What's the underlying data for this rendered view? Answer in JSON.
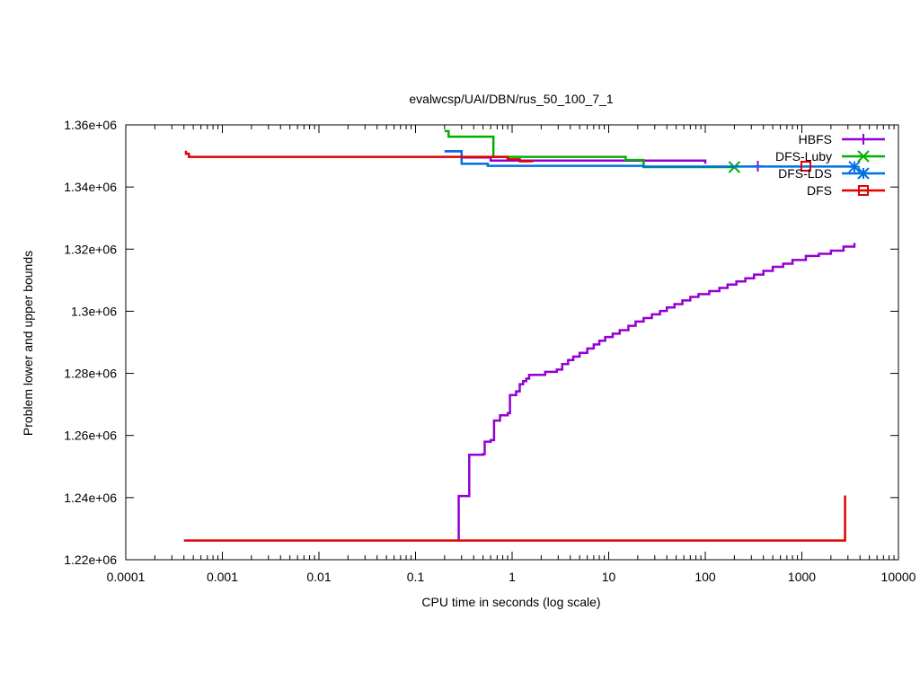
{
  "chart_data": {
    "type": "line",
    "title": "evalwcsp/UAI/DBN/rus_50_100_7_1",
    "xlabel": "CPU time in seconds (log scale)",
    "ylabel": "Problem lower and upper bounds",
    "xscale": "log",
    "xlim": [
      0.0001,
      10000
    ],
    "ylim": [
      1220000,
      1360000
    ],
    "x_ticks": [
      {
        "value": 0.0001,
        "label": "0.0001"
      },
      {
        "value": 0.001,
        "label": "0.001"
      },
      {
        "value": 0.01,
        "label": "0.01"
      },
      {
        "value": 0.1,
        "label": "0.1"
      },
      {
        "value": 1,
        "label": "1"
      },
      {
        "value": 10,
        "label": "10"
      },
      {
        "value": 100,
        "label": "100"
      },
      {
        "value": 1000,
        "label": "1000"
      },
      {
        "value": 10000,
        "label": "10000"
      }
    ],
    "y_ticks": [
      {
        "value": 1220000,
        "label": "1.22e+06"
      },
      {
        "value": 1240000,
        "label": "1.24e+06"
      },
      {
        "value": 1260000,
        "label": "1.26e+06"
      },
      {
        "value": 1280000,
        "label": "1.28e+06"
      },
      {
        "value": 1300000,
        "label": "1.3e+06"
      },
      {
        "value": 1320000,
        "label": "1.32e+06"
      },
      {
        "value": 1340000,
        "label": "1.34e+06"
      },
      {
        "value": 1360000,
        "label": "1.36e+06"
      }
    ],
    "grid": false,
    "legend_position": "top-right",
    "series": [
      {
        "name": "HBFS",
        "color": "#9400d3",
        "marker": "plus",
        "marker_at": [
          350,
          1346700
        ],
        "lines": [
          [
            [
              0.2,
              1351500
            ],
            [
              0.3,
              1351500
            ],
            [
              0.3,
              1349500
            ],
            [
              0.6,
              1349500
            ],
            [
              0.6,
              1348500
            ],
            [
              100,
              1348500
            ],
            [
              100,
              1347500
            ]
          ],
          [
            [
              0.28,
              1226500
            ],
            [
              0.28,
              1240500
            ],
            [
              0.36,
              1240500
            ],
            [
              0.36,
              1253800
            ],
            [
              0.5,
              1253800
            ],
            [
              0.5,
              1254000
            ],
            [
              0.52,
              1254000
            ],
            [
              0.52,
              1258000
            ],
            [
              0.6,
              1258000
            ],
            [
              0.6,
              1258500
            ],
            [
              0.65,
              1258500
            ],
            [
              0.65,
              1264800
            ],
            [
              0.75,
              1264800
            ],
            [
              0.75,
              1266500
            ],
            [
              0.9,
              1266500
            ],
            [
              0.9,
              1267200
            ],
            [
              0.95,
              1267200
            ],
            [
              0.95,
              1273000
            ],
            [
              1.1,
              1273000
            ],
            [
              1.1,
              1274200
            ],
            [
              1.2,
              1274200
            ],
            [
              1.2,
              1276500
            ],
            [
              1.3,
              1276500
            ],
            [
              1.3,
              1277500
            ],
            [
              1.4,
              1277500
            ],
            [
              1.4,
              1278300
            ],
            [
              1.5,
              1278300
            ],
            [
              1.5,
              1279500
            ],
            [
              2.2,
              1279500
            ],
            [
              2.2,
              1280500
            ],
            [
              2.9,
              1280500
            ],
            [
              2.9,
              1281200
            ],
            [
              3.3,
              1281200
            ],
            [
              3.3,
              1283000
            ],
            [
              3.8,
              1283000
            ],
            [
              3.8,
              1284300
            ],
            [
              4.3,
              1284300
            ],
            [
              4.3,
              1285400
            ],
            [
              5.0,
              1285400
            ],
            [
              5.0,
              1286600
            ],
            [
              6.0,
              1286600
            ],
            [
              6.0,
              1288000
            ],
            [
              7.0,
              1288000
            ],
            [
              7.0,
              1289300
            ],
            [
              8.0,
              1289300
            ],
            [
              8.0,
              1290500
            ],
            [
              9.2,
              1290500
            ],
            [
              9.2,
              1291700
            ],
            [
              11,
              1291700
            ],
            [
              11,
              1292800
            ],
            [
              13,
              1292800
            ],
            [
              13,
              1293900
            ],
            [
              16,
              1293900
            ],
            [
              16,
              1295300
            ],
            [
              19,
              1295300
            ],
            [
              19,
              1296700
            ],
            [
              23,
              1296700
            ],
            [
              23,
              1297800
            ],
            [
              28,
              1297800
            ],
            [
              28,
              1299000
            ],
            [
              34,
              1299000
            ],
            [
              34,
              1300100
            ],
            [
              40,
              1300100
            ],
            [
              40,
              1301200
            ],
            [
              48,
              1301200
            ],
            [
              48,
              1302300
            ],
            [
              58,
              1302300
            ],
            [
              58,
              1303500
            ],
            [
              70,
              1303500
            ],
            [
              70,
              1304600
            ],
            [
              85,
              1304600
            ],
            [
              85,
              1305500
            ],
            [
              110,
              1305500
            ],
            [
              110,
              1306500
            ],
            [
              140,
              1306500
            ],
            [
              140,
              1307500
            ],
            [
              170,
              1307500
            ],
            [
              170,
              1308600
            ],
            [
              210,
              1308600
            ],
            [
              210,
              1309600
            ],
            [
              260,
              1309600
            ],
            [
              260,
              1310600
            ],
            [
              320,
              1310600
            ],
            [
              320,
              1311800
            ],
            [
              400,
              1311800
            ],
            [
              400,
              1313000
            ],
            [
              500,
              1313000
            ],
            [
              500,
              1314300
            ],
            [
              640,
              1314300
            ],
            [
              640,
              1315300
            ],
            [
              800,
              1315300
            ],
            [
              800,
              1316500
            ],
            [
              1100,
              1316500
            ],
            [
              1100,
              1317800
            ],
            [
              1500,
              1317800
            ],
            [
              1500,
              1318500
            ],
            [
              2000,
              1318500
            ],
            [
              2000,
              1319500
            ],
            [
              2700,
              1319500
            ],
            [
              2700,
              1320800
            ],
            [
              3500,
              1320800
            ],
            [
              3500,
              1322000
            ]
          ]
        ]
      },
      {
        "name": "DFS-Luby",
        "color": "#00b000",
        "marker": "x",
        "marker_at": [
          200,
          1346400
        ],
        "lines": [
          [
            [
              0.2,
              1358000
            ],
            [
              0.22,
              1358000
            ],
            [
              0.22,
              1356200
            ],
            [
              0.64,
              1356200
            ],
            [
              0.64,
              1349700
            ],
            [
              15,
              1349700
            ],
            [
              15,
              1348700
            ],
            [
              23,
              1348700
            ],
            [
              23,
              1346400
            ],
            [
              200,
              1346400
            ]
          ]
        ]
      },
      {
        "name": "DFS-LDS",
        "color": "#0070e0",
        "marker": "asterisk",
        "marker_at": [
          3500,
          1346500
        ],
        "lines": [
          [
            [
              0.2,
              1351500
            ],
            [
              0.3,
              1351500
            ],
            [
              0.3,
              1347500
            ],
            [
              0.56,
              1347500
            ],
            [
              0.56,
              1346800
            ],
            [
              23,
              1346800
            ],
            [
              23,
              1346600
            ],
            [
              3500,
              1346600
            ]
          ]
        ]
      },
      {
        "name": "DFS",
        "color": "#e00000",
        "marker": "square",
        "marker_at": [
          1100,
          1346700
        ],
        "lines": [
          [
            [
              0.00042,
              1351700
            ],
            [
              0.00042,
              1350700
            ],
            [
              0.00045,
              1350700
            ],
            [
              0.00045,
              1349700
            ],
            [
              0.9,
              1349700
            ],
            [
              0.9,
              1348900
            ],
            [
              1.2,
              1348900
            ],
            [
              1.2,
              1348300
            ],
            [
              1.65,
              1348300
            ]
          ],
          [
            [
              0.0004,
              1226200
            ],
            [
              2800,
              1226200
            ],
            [
              2800,
              1240700
            ]
          ]
        ]
      }
    ]
  }
}
